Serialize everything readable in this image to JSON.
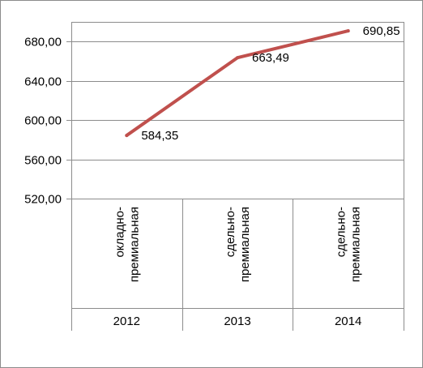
{
  "chart_data": {
    "type": "line",
    "title": "",
    "xlabel": "",
    "ylabel": "",
    "categories": [
      {
        "lines": [
          "окладно-",
          "премиальная"
        ],
        "year": "2012"
      },
      {
        "lines": [
          "сдельно-",
          "премиальная"
        ],
        "year": "2013"
      },
      {
        "lines": [
          "сдельно-",
          "премиальная"
        ],
        "year": "2014"
      }
    ],
    "series": [
      {
        "values": [
          584.35,
          663.49,
          690.85
        ],
        "labels": [
          "584,35",
          "663,49",
          "690,85"
        ],
        "color": "#c0504d"
      }
    ],
    "ylim": [
      520,
      700
    ],
    "yticks": [
      520,
      560,
      600,
      640,
      680
    ],
    "ytick_labels": [
      "520,00",
      "560,00",
      "600,00",
      "640,00",
      "680,00"
    ],
    "grid": true
  }
}
